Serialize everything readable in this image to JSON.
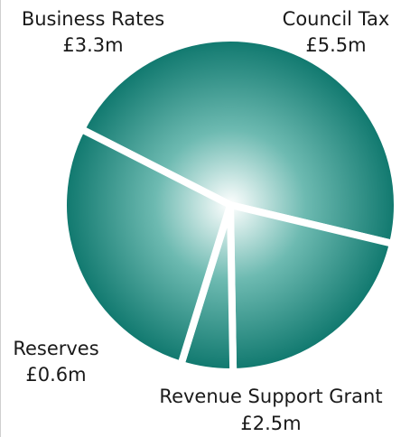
{
  "chart_data": {
    "type": "pie",
    "title": "",
    "unit": "£m",
    "colors": {
      "center": "#ffffff",
      "mid": "#5fb3a9",
      "edge": "#0f7a70",
      "gap": "#ffffff"
    },
    "slices": [
      {
        "name": "Council Tax",
        "value": 5.5,
        "display": "£5.5m"
      },
      {
        "name": "Revenue Support Grant",
        "value": 2.5,
        "display": "£2.5m"
      },
      {
        "name": "Reserves",
        "value": 0.6,
        "display": "£0.6m"
      },
      {
        "name": "Business Rates",
        "value": 3.3,
        "display": "£3.3m"
      }
    ]
  }
}
